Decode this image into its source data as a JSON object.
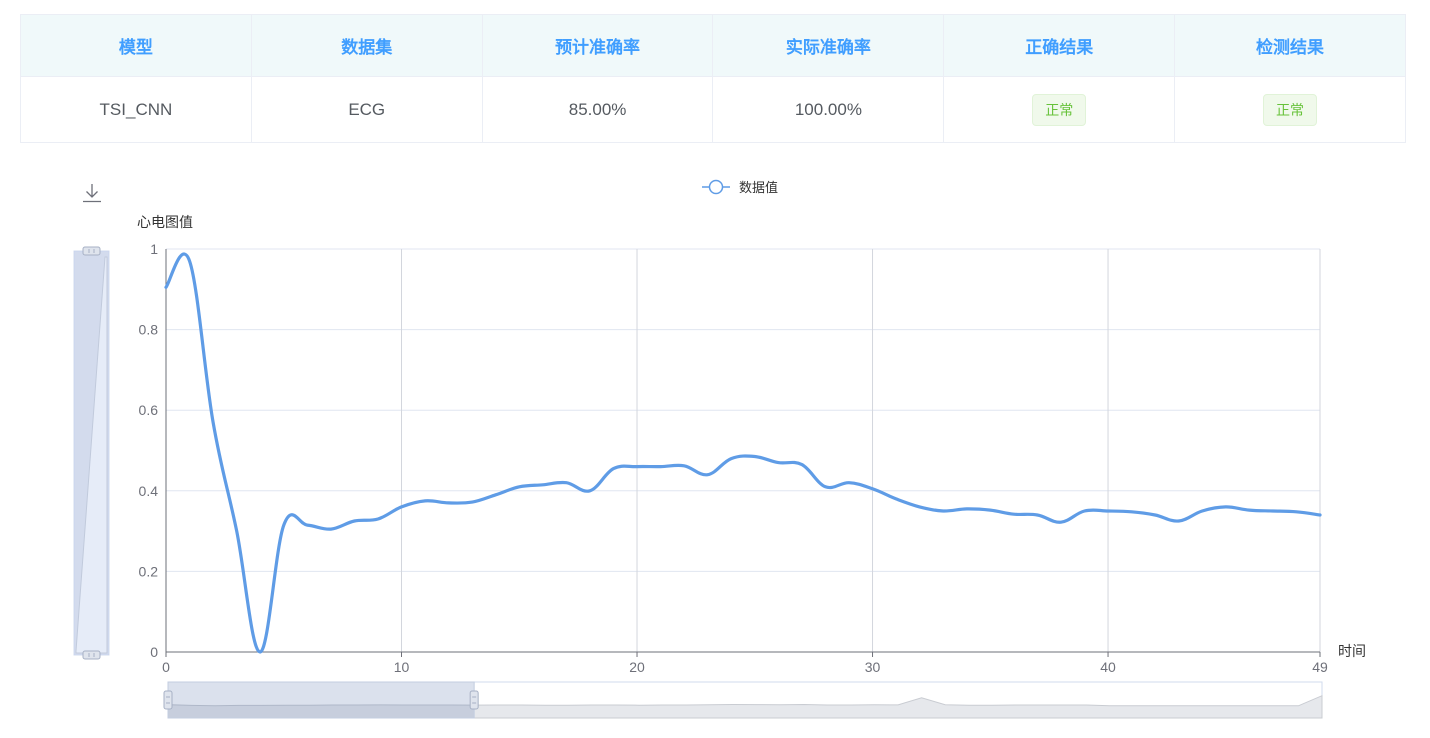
{
  "table": {
    "headers": [
      "模型",
      "数据集",
      "预计准确率",
      "实际准确率",
      "正确结果",
      "检测结果"
    ],
    "row": {
      "model": "TSI_CNN",
      "dataset": "ECG",
      "expected_accuracy": "85.00%",
      "actual_accuracy": "100.00%",
      "correct_result": "正常",
      "detected_result": "正常"
    }
  },
  "toolbox": {
    "save_icon": "download-icon"
  },
  "chart_data": {
    "type": "line",
    "legend": "数据值",
    "legend_placement": "top-center",
    "ylabel": "心电图值",
    "xlabel": "时间",
    "xlim": [
      0,
      49
    ],
    "ylim": [
      0,
      1
    ],
    "x_ticks": [
      0,
      10,
      20,
      30,
      40,
      49
    ],
    "y_ticks": [
      0,
      0.2,
      0.4,
      0.6,
      0.8,
      1
    ],
    "grid": true,
    "smooth": true,
    "line_color": "#5f9ce6",
    "x": [
      0,
      1,
      2,
      3,
      4,
      5,
      6,
      7,
      8,
      9,
      10,
      11,
      12,
      13,
      14,
      15,
      16,
      17,
      18,
      19,
      20,
      21,
      22,
      23,
      24,
      25,
      26,
      27,
      28,
      29,
      30,
      31,
      32,
      33,
      34,
      35,
      36,
      37,
      38,
      39,
      40,
      41,
      42,
      43,
      44,
      45,
      46,
      47,
      48,
      49
    ],
    "y": [
      0.905,
      0.97,
      0.57,
      0.3,
      0.0,
      0.315,
      0.315,
      0.305,
      0.325,
      0.33,
      0.36,
      0.375,
      0.37,
      0.372,
      0.39,
      0.41,
      0.415,
      0.42,
      0.4,
      0.455,
      0.46,
      0.46,
      0.462,
      0.44,
      0.48,
      0.485,
      0.47,
      0.465,
      0.41,
      0.42,
      0.405,
      0.38,
      0.36,
      0.35,
      0.355,
      0.352,
      0.342,
      0.34,
      0.322,
      0.35,
      0.35,
      0.348,
      0.34,
      0.325,
      0.35,
      0.36,
      0.352,
      0.35,
      0.348,
      0.34
    ],
    "data_zoom": {
      "x_range": [
        0,
        13
      ],
      "y_range": [
        0,
        1
      ],
      "overview_y": [
        0.37,
        0.35,
        0.34,
        0.35,
        0.35,
        0.355,
        0.355,
        0.36,
        0.36,
        0.365,
        0.36,
        0.362,
        0.36,
        0.358,
        0.36,
        0.36,
        0.355,
        0.355,
        0.36,
        0.36,
        0.355,
        0.36,
        0.36,
        0.37,
        0.375,
        0.372,
        0.37,
        0.375,
        0.36,
        0.36,
        0.37,
        0.365,
        0.56,
        0.37,
        0.355,
        0.355,
        0.36,
        0.36,
        0.36,
        0.36,
        0.34,
        0.34,
        0.34,
        0.34,
        0.34,
        0.34,
        0.34,
        0.34,
        0.34,
        0.62
      ]
    }
  }
}
